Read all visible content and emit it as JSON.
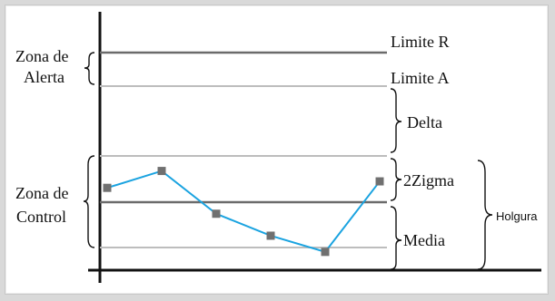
{
  "labels": {
    "zona_alerta": [
      "Zona de",
      "Alerta"
    ],
    "zona_control": [
      "Zona de",
      "Control"
    ],
    "limite_r": "Limite R",
    "limite_a": "Limite A",
    "delta": "Delta",
    "two_zigma": "2Zigma",
    "media": "Media",
    "holgura": "Holgura"
  },
  "colors": {
    "axis": "#111111",
    "dark_line": "#6b6b6b",
    "light_line": "#bdbdbd",
    "series_line": "#1aa3e0",
    "marker": "#707070",
    "background": "#d9d9d9",
    "panel": "#ffffff"
  },
  "series": {
    "points": [
      0.62,
      1.35,
      -0.5,
      -1.45,
      -2.15,
      0.9
    ]
  }
}
